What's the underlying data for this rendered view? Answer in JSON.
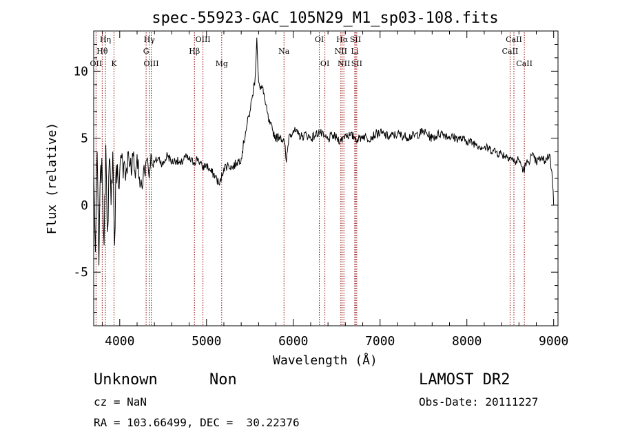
{
  "chart_data": {
    "type": "line",
    "title": "spec-55923-GAC_105N29_M1_sp03-108.fits",
    "xlabel": "Wavelength (Å)",
    "ylabel": "Flux (relative)",
    "xlim": [
      3700,
      9050
    ],
    "ylim": [
      -9,
      13
    ],
    "xticks": [
      4000,
      5000,
      6000,
      7000,
      8000,
      9000
    ],
    "yticks": [
      -5,
      0,
      5,
      10
    ],
    "grid": false,
    "line_color": "#000000",
    "marker_color": "#8b0000",
    "series": [
      {
        "x": [
          3700,
          3720,
          3740,
          3760,
          3780,
          3800,
          3820,
          3840,
          3860,
          3880,
          3900,
          3920,
          3940,
          3960,
          3980,
          4000,
          4020,
          4040,
          4060,
          4080,
          4100,
          4120,
          4140,
          4160,
          4180,
          4200,
          4220,
          4240,
          4260,
          4280,
          4300,
          4320,
          4340,
          4360,
          4380,
          4400,
          4450,
          4500,
          4550,
          4600,
          4650,
          4700,
          4750,
          4800,
          4850,
          4900,
          4950,
          5000,
          5050,
          5100,
          5150,
          5200,
          5250,
          5300,
          5350,
          5400,
          5450,
          5500,
          5530,
          5560,
          5580,
          5600,
          5620,
          5650,
          5680,
          5720,
          5760,
          5800,
          5850,
          5900,
          5920,
          5950,
          6000,
          6050,
          6100,
          6150,
          6200,
          6250,
          6300,
          6350,
          6400,
          6450,
          6500,
          6550,
          6600,
          6650,
          6700,
          6750,
          6800,
          6850,
          6900,
          6950,
          7000,
          7100,
          7200,
          7300,
          7400,
          7500,
          7600,
          7700,
          7800,
          7900,
          8000,
          8100,
          8200,
          8300,
          8400,
          8500,
          8550,
          8600,
          8650,
          8700,
          8750,
          8800,
          8850,
          8900,
          8950,
          8980,
          9000
        ],
        "y": [
          2.5,
          -3.5,
          4,
          -4.5,
          3,
          2,
          -3,
          4.5,
          -2,
          3.5,
          0,
          4,
          -3,
          3,
          2,
          2.5,
          3.5,
          2,
          3,
          2.8,
          4,
          3,
          2.5,
          4,
          2,
          3.8,
          2,
          1.5,
          1.2,
          3,
          3.2,
          3.5,
          2,
          3.8,
          3,
          3.2,
          3.5,
          3,
          3.8,
          3.2,
          3.4,
          3,
          3.6,
          3.4,
          3.2,
          3.5,
          2.8,
          3,
          2.5,
          2.2,
          1.5,
          2.8,
          3,
          2.8,
          3.2,
          3.5,
          5.5,
          7,
          8.2,
          9.5,
          12.5,
          9.2,
          8.6,
          8.8,
          7.5,
          6.2,
          5.6,
          5,
          5.2,
          4.6,
          3.2,
          5.2,
          5.6,
          5.3,
          5.1,
          5.3,
          5,
          5.2,
          5.5,
          5.1,
          4.9,
          5.2,
          5.0,
          4.8,
          5.3,
          5.2,
          5.1,
          4.9,
          5.2,
          5.0,
          5.1,
          5.3,
          5.4,
          5.1,
          5.3,
          5.1,
          5.2,
          5.5,
          5.0,
          5.4,
          5.1,
          5.0,
          4.8,
          4.6,
          4.3,
          4.1,
          3.8,
          3.6,
          3.2,
          3.4,
          2.6,
          3.2,
          3.7,
          3.2,
          3.5,
          3.3,
          3.8,
          2.5,
          0
        ]
      }
    ],
    "lines": [
      {
        "label": "OII",
        "x": 3727,
        "row": 3
      },
      {
        "label": "Hθ",
        "x": 3798,
        "row": 2
      },
      {
        "label": "Hη",
        "x": 3835,
        "row": 1
      },
      {
        "label": "K",
        "x": 3934,
        "row": 3
      },
      {
        "label": "Hγ",
        "x": 4341,
        "row": 1
      },
      {
        "label": "G",
        "x": 4304,
        "row": 2
      },
      {
        "label": "OIII",
        "x": 4363,
        "row": 3
      },
      {
        "label": "Hβ",
        "x": 4861,
        "row": 2
      },
      {
        "label": "OIII",
        "x": 4959,
        "row": 1
      },
      {
        "label": "Mg",
        "x": 5175,
        "row": 3
      },
      {
        "label": "Na",
        "x": 5893,
        "row": 2
      },
      {
        "label": "OI",
        "x": 6300,
        "row": 1
      },
      {
        "label": "OI",
        "x": 6364,
        "row": 3
      },
      {
        "label": "Hα",
        "x": 6563,
        "row": 1
      },
      {
        "label": "NII",
        "x": 6548,
        "row": 2
      },
      {
        "label": "NII",
        "x": 6583,
        "row": 3
      },
      {
        "label": "SII",
        "x": 6716,
        "row": 1
      },
      {
        "label": "Li",
        "x": 6708,
        "row": 2
      },
      {
        "label": "SII",
        "x": 6731,
        "row": 3
      },
      {
        "label": "CaII",
        "x": 8542,
        "row": 1
      },
      {
        "label": "CaII",
        "x": 8498,
        "row": 2
      },
      {
        "label": "CaII",
        "x": 8662,
        "row": 3
      }
    ]
  },
  "info": {
    "class": "Unknown",
    "subclass": "Non",
    "survey": "LAMOST DR2",
    "cz": "cz = NaN",
    "obs_date": "Obs-Date: 20111227",
    "coords": "RA = 103.66499, DEC =  30.22376"
  }
}
